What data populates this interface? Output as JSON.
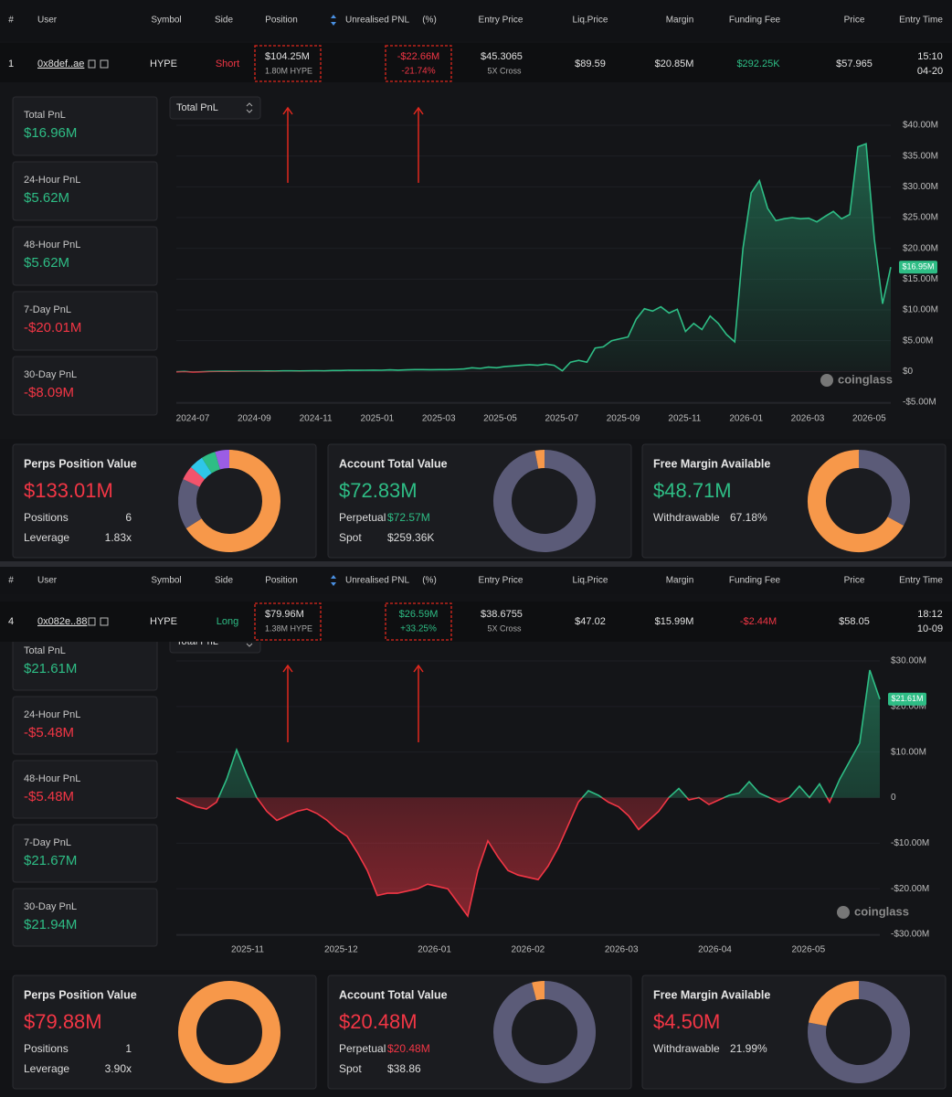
{
  "panels": [
    {
      "table": {
        "headers": [
          "#",
          "User",
          "Symbol",
          "Side",
          "Position",
          "Unrealised PNL",
          "(%)",
          "Entry Price",
          "Liq.Price",
          "Margin",
          "Funding Fee",
          "Price",
          "Entry Time"
        ],
        "row": {
          "index": "1",
          "user": "0x8def..ae",
          "symbol": "HYPE",
          "side": "Short",
          "position": "$104.25M",
          "position_size": "1.80M HYPE",
          "pnl": "-$22.66M",
          "pnl_pct": "-21.74%",
          "entry_price": "$45.3065",
          "leverage": "5X Cross",
          "liq_price": "$89.59",
          "margin": "$20.85M",
          "funding_fee": "$292.25K",
          "price": "$57.965",
          "entry_time": "15:10",
          "entry_date": "04-20"
        },
        "colors": {
          "side": "#f23645",
          "pnl": "#f23645",
          "pnl_pct": "#f23645",
          "funding_fee": "#2ebd85"
        }
      },
      "selector": "Total PnL",
      "stats": [
        {
          "label": "Total PnL",
          "value": "$16.96M",
          "color": "#2ebd85"
        },
        {
          "label": "24-Hour PnL",
          "value": "$5.62M",
          "color": "#2ebd85"
        },
        {
          "label": "48-Hour PnL",
          "value": "$5.62M",
          "color": "#2ebd85"
        },
        {
          "label": "7-Day PnL",
          "value": "-$20.01M",
          "color": "#f23645"
        },
        {
          "label": "30-Day PnL",
          "value": "-$8.09M",
          "color": "#f23645"
        }
      ],
      "chart": {
        "type": "area",
        "x_labels": [
          "2024-07",
          "2024-09",
          "2024-11",
          "2025-01",
          "2025-03",
          "2025-05",
          "2025-07",
          "2025-09",
          "2025-11",
          "2026-01",
          "2026-03",
          "2026-05"
        ],
        "ylim": [
          -5,
          40
        ],
        "yticks": [
          {
            "value": 40,
            "label": "$40.00M"
          },
          {
            "value": 35,
            "label": "$35.00M"
          },
          {
            "value": 30,
            "label": "$30.00M"
          },
          {
            "value": 25,
            "label": "$25.00M"
          },
          {
            "value": 20,
            "label": "$20.00M"
          },
          {
            "value": 15,
            "label": "$15.00M"
          },
          {
            "value": 10,
            "label": "$10.00M"
          },
          {
            "value": 5,
            "label": "$5.00M"
          },
          {
            "value": 0,
            "label": "$0"
          },
          {
            "value": -5,
            "label": "-$5.00M"
          }
        ],
        "values": [
          -0.05,
          0,
          -0.1,
          -0.05,
          0,
          0.02,
          0.03,
          0.02,
          0.05,
          0.05,
          0.05,
          0.08,
          0.06,
          0.1,
          0.1,
          0.08,
          0.1,
          0.12,
          0.1,
          0.15,
          0.15,
          0.2,
          0.18,
          0.2,
          0.22,
          0.2,
          0.25,
          0.22,
          0.25,
          0.3,
          0.3,
          0.28,
          0.3,
          0.3,
          0.35,
          0.4,
          0.6,
          0.5,
          0.7,
          0.6,
          0.8,
          0.9,
          1.0,
          1.1,
          1.0,
          1.2,
          1.0,
          0.1,
          1.5,
          1.8,
          1.5,
          3.8,
          4.0,
          5.0,
          5.3,
          5.6,
          8.5,
          10.2,
          9.8,
          10.5,
          9.5,
          10.1,
          6.5,
          7.8,
          6.8,
          9.0,
          7.8,
          6.0,
          4.8,
          20.0,
          29.0,
          31.0,
          26.5,
          24.5,
          24.8,
          25.0,
          24.8,
          24.9,
          24.3,
          25.2,
          26.0,
          24.8,
          25.5,
          36.5,
          37.0,
          21.5,
          11.0,
          16.95
        ],
        "current_label": "$16.95M",
        "watermark": "coinglass"
      },
      "cards": [
        {
          "title": "Perps Position Value",
          "value": "$133.01M",
          "color": "#f23645",
          "rows": [
            {
              "label": "Positions",
              "value": "6"
            },
            {
              "label": "Leverage",
              "value": "1.83x"
            }
          ],
          "donut": {
            "values": [
              66,
              16,
              4.5,
              4.5,
              4.5,
              4.5
            ],
            "colors": [
              "#f7984a",
              "#5b5b78",
              "#f2546c",
              "#2fc6e8",
              "#2ebd85",
              "#9b5de5"
            ]
          }
        },
        {
          "title": "Account Total Value",
          "value": "$72.83M",
          "color": "#2ebd85",
          "rows": [
            {
              "label": "Perpetual",
              "value": "$72.57M",
              "color": "#2ebd85"
            },
            {
              "label": "Spot",
              "value": "$259.36K"
            }
          ],
          "donut": {
            "values": [
              97,
              3
            ],
            "colors": [
              "#5b5b78",
              "#f7984a"
            ]
          }
        },
        {
          "title": "Free Margin Available",
          "value": "$48.71M",
          "color": "#2ebd85",
          "rows": [
            {
              "label": "Withdrawable",
              "value": "67.18%"
            }
          ],
          "donut": {
            "values": [
              33,
              67
            ],
            "colors": [
              "#5b5b78",
              "#f7984a"
            ]
          }
        }
      ]
    },
    {
      "table": {
        "headers": [
          "#",
          "User",
          "Symbol",
          "Side",
          "Position",
          "Unrealised PNL",
          "(%)",
          "Entry Price",
          "Liq.Price",
          "Margin",
          "Funding Fee",
          "Price",
          "Entry Time"
        ],
        "row": {
          "index": "4",
          "user": "0x082e..88",
          "symbol": "HYPE",
          "side": "Long",
          "position": "$79.96M",
          "position_size": "1.38M HYPE",
          "pnl": "$26.59M",
          "pnl_pct": "+33.25%",
          "entry_price": "$38.6755",
          "leverage": "5X Cross",
          "liq_price": "$47.02",
          "margin": "$15.99M",
          "funding_fee": "-$2.44M",
          "price": "$58.05",
          "entry_time": "18:12",
          "entry_date": "10-09"
        },
        "colors": {
          "side": "#2ebd85",
          "pnl": "#2ebd85",
          "pnl_pct": "#2ebd85",
          "funding_fee": "#f23645"
        }
      },
      "selector": "Total PnL",
      "stats": [
        {
          "label": "Total PnL",
          "value": "$21.61M",
          "color": "#2ebd85"
        },
        {
          "label": "24-Hour PnL",
          "value": "-$5.48M",
          "color": "#f23645"
        },
        {
          "label": "48-Hour PnL",
          "value": "-$5.48M",
          "color": "#f23645"
        },
        {
          "label": "7-Day PnL",
          "value": "$21.67M",
          "color": "#2ebd85"
        },
        {
          "label": "30-Day PnL",
          "value": "$21.94M",
          "color": "#2ebd85"
        }
      ],
      "chart": {
        "type": "area",
        "x_labels": [
          "2025-11",
          "2025-12",
          "2026-01",
          "2026-02",
          "2026-03",
          "2026-04",
          "2026-05"
        ],
        "ylim": [
          -30,
          30
        ],
        "yticks": [
          {
            "value": 30,
            "label": "$30.00M"
          },
          {
            "value": 20,
            "label": "$20.00M"
          },
          {
            "value": 10,
            "label": "$10.00M"
          },
          0,
          {
            "value": -10,
            "label": "-$10.00M"
          },
          {
            "value": -20,
            "label": "-$20.00M"
          },
          {
            "value": -30,
            "label": "-$30.00M"
          }
        ],
        "values": [
          0,
          -1,
          -2,
          -2.5,
          -1,
          4,
          10.5,
          5,
          0,
          -3,
          -5,
          -4,
          -3,
          -2.5,
          -3.5,
          -5,
          -7,
          -8.5,
          -12,
          -16,
          -21.5,
          -21,
          -21,
          -20.5,
          -20,
          -19,
          -19.5,
          -20,
          -23,
          -26,
          -16,
          -9.5,
          -13,
          -16,
          -17,
          -17.5,
          -18,
          -15,
          -11,
          -6,
          -1,
          1.5,
          0.5,
          -1,
          -2,
          -4,
          -7,
          -5,
          -3,
          0,
          2,
          -0.5,
          0,
          -1.5,
          -0.5,
          0.5,
          1,
          3.5,
          1,
          0,
          -1,
          0,
          2.5,
          0,
          3,
          -1,
          4,
          8,
          12,
          28,
          21.61
        ],
        "current_label": "$21.61M",
        "watermark": "coinglass"
      },
      "cards": [
        {
          "title": "Perps Position Value",
          "value": "$79.88M",
          "color": "#f23645",
          "rows": [
            {
              "label": "Positions",
              "value": "1"
            },
            {
              "label": "Leverage",
              "value": "3.90x"
            }
          ],
          "donut": {
            "values": [
              100
            ],
            "colors": [
              "#f7984a"
            ]
          }
        },
        {
          "title": "Account Total Value",
          "value": "$20.48M",
          "color": "#f23645",
          "rows": [
            {
              "label": "Perpetual",
              "value": "$20.48M",
              "color": "#f23645"
            },
            {
              "label": "Spot",
              "value": "$38.86"
            }
          ],
          "donut": {
            "values": [
              96,
              4
            ],
            "colors": [
              "#5b5b78",
              "#f7984a"
            ]
          }
        },
        {
          "title": "Free Margin Available",
          "value": "$4.50M",
          "color": "#f23645",
          "rows": [
            {
              "label": "Withdrawable",
              "value": "21.99%"
            }
          ],
          "donut": {
            "values": [
              78,
              22
            ],
            "colors": [
              "#5b5b78",
              "#f7984a"
            ]
          }
        }
      ]
    }
  ]
}
